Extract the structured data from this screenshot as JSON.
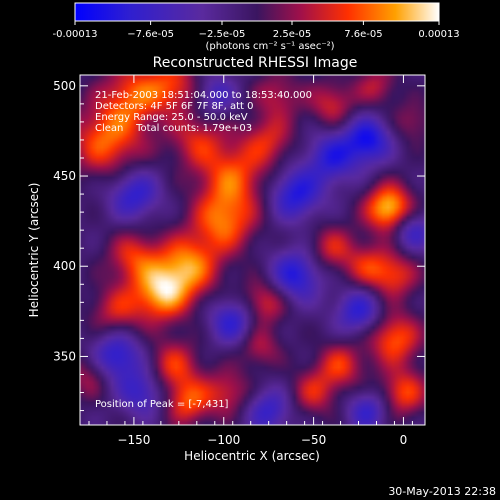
{
  "chart_data": {
    "type": "heatmap",
    "title": "Reconstructed RHESSI Image",
    "xlabel": "Heliocentric X (arcsec)",
    "ylabel": "Heliocentric Y (arcsec)",
    "xlim": [
      -180,
      12
    ],
    "ylim": [
      312,
      506
    ],
    "x_ticks": [
      -150,
      -100,
      -50,
      0
    ],
    "y_ticks": [
      350,
      400,
      450,
      500
    ],
    "colorbar": {
      "range": [
        -0.00013,
        0.00013
      ],
      "tick_values": [
        -0.00013,
        -7.6e-05,
        -2.5e-05,
        2.5e-05,
        7.6e-05,
        0.00013
      ],
      "tick_labels": [
        "-0.00013",
        "−7.6e-05",
        "−2.5e-05",
        "2.5e-05",
        "7.6e-05",
        "0.00013"
      ],
      "units_label": "(photons cm⁻² s⁻¹ asec⁻²)"
    },
    "annotations": [
      "21-Feb-2003 18:51:04.000 to 18:53:40.000",
      "Detectors: 4F 5F 6F 7F 8F, att 0",
      "Energy Range: 25.0 - 50.0 keV",
      "Clean    Total counts: 1.79e+03"
    ],
    "peak_label": "Position of Peak = [-7,431]",
    "blobs": [
      {
        "x": -165,
        "y": 470,
        "v": 9e-05,
        "s": 14
      },
      {
        "x": -150,
        "y": 495,
        "v": 8e-05,
        "s": 12
      },
      {
        "x": -128,
        "y": 500,
        "v": 7e-05,
        "s": 10
      },
      {
        "x": -115,
        "y": 470,
        "v": 6e-05,
        "s": 11
      },
      {
        "x": -95,
        "y": 450,
        "v": 8e-05,
        "s": 13
      },
      {
        "x": -100,
        "y": 425,
        "v": 9e-05,
        "s": 12
      },
      {
        "x": -75,
        "y": 470,
        "v": 6e-05,
        "s": 10
      },
      {
        "x": -70,
        "y": 495,
        "v": 5e-05,
        "s": 9
      },
      {
        "x": -120,
        "y": 400,
        "v": 0.0001,
        "s": 12
      },
      {
        "x": -135,
        "y": 385,
        "v": 0.00011,
        "s": 11
      },
      {
        "x": -150,
        "y": 405,
        "v": 7e-05,
        "s": 10
      },
      {
        "x": -160,
        "y": 375,
        "v": 6e-05,
        "s": 10
      },
      {
        "x": -128,
        "y": 345,
        "v": 7e-05,
        "s": 10
      },
      {
        "x": -120,
        "y": 325,
        "v": 8e-05,
        "s": 9
      },
      {
        "x": -98,
        "y": 330,
        "v": 6e-05,
        "s": 9
      },
      {
        "x": -78,
        "y": 380,
        "v": 7e-05,
        "s": 9
      },
      {
        "x": -80,
        "y": 355,
        "v": 5e-05,
        "s": 8
      },
      {
        "x": -40,
        "y": 410,
        "v": 6e-05,
        "s": 9
      },
      {
        "x": -20,
        "y": 400,
        "v": 6e-05,
        "s": 9
      },
      {
        "x": -8,
        "y": 432,
        "v": 0.00013,
        "s": 9
      },
      {
        "x": -5,
        "y": 395,
        "v": 7e-05,
        "s": 9
      },
      {
        "x": -5,
        "y": 360,
        "v": 9e-05,
        "s": 10
      },
      {
        "x": -35,
        "y": 345,
        "v": 7e-05,
        "s": 9
      },
      {
        "x": -50,
        "y": 330,
        "v": 6e-05,
        "s": 9
      },
      {
        "x": 0,
        "y": 330,
        "v": 8e-05,
        "s": 9
      },
      {
        "x": -40,
        "y": 490,
        "v": 6e-05,
        "s": 9
      },
      {
        "x": -15,
        "y": 500,
        "v": 5e-05,
        "s": 8
      },
      {
        "x": 5,
        "y": 480,
        "v": 4e-05,
        "s": 8
      },
      {
        "x": -175,
        "y": 340,
        "v": 5e-05,
        "s": 9
      },
      {
        "x": -60,
        "y": 440,
        "v": -9e-05,
        "s": 10
      },
      {
        "x": -40,
        "y": 460,
        "v": -8e-05,
        "s": 10
      },
      {
        "x": -20,
        "y": 470,
        "v": -0.0001,
        "s": 9
      },
      {
        "x": 5,
        "y": 420,
        "v": -7e-05,
        "s": 8
      },
      {
        "x": -150,
        "y": 440,
        "v": -8e-05,
        "s": 10
      },
      {
        "x": -160,
        "y": 350,
        "v": -9e-05,
        "s": 10
      },
      {
        "x": -145,
        "y": 330,
        "v": -7e-05,
        "s": 9
      },
      {
        "x": -95,
        "y": 370,
        "v": -8e-05,
        "s": 9
      },
      {
        "x": -60,
        "y": 395,
        "v": -9e-05,
        "s": 10
      },
      {
        "x": -25,
        "y": 375,
        "v": -8e-05,
        "s": 9
      },
      {
        "x": -75,
        "y": 320,
        "v": -7e-05,
        "s": 9
      },
      {
        "x": -20,
        "y": 320,
        "v": -7e-05,
        "s": 8
      },
      {
        "x": -105,
        "y": 495,
        "v": -6e-05,
        "s": 8
      }
    ]
  },
  "timestamp": "30-May-2013 22:38",
  "colors": {
    "background": "#000000",
    "text": "#ffffff"
  }
}
